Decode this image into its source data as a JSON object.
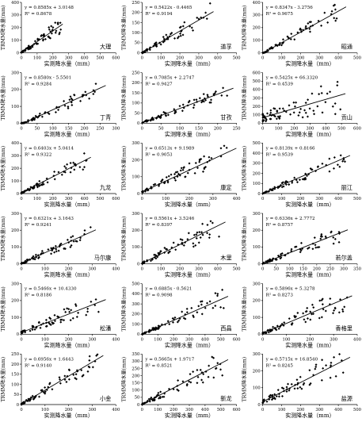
{
  "layout": {
    "rows": 6,
    "cols": 3
  },
  "chart_data": [
    {
      "type": "scatter",
      "station": "大理",
      "equation": "y = 0.8585x + 3.0148",
      "r2": "R² = 0.8678",
      "xlabel": "实测降水量（mm）",
      "ylabel": "TRMM降水量(mm)",
      "xlim": [
        0,
        600
      ],
      "ylim": [
        0,
        400
      ],
      "xticks": [
        "0",
        "100",
        "200",
        "300",
        "400",
        "500",
        "600"
      ],
      "yticks": [
        "0",
        "100",
        "200",
        "300",
        "400"
      ],
      "slope": 0.8585,
      "intercept": 3.0148,
      "xmax": 250,
      "seed": 1
    },
    {
      "type": "scatter",
      "station": "道孚",
      "equation": "y = 0.5422x - 0.4465",
      "r2": "R² = 0.9194",
      "xlabel": "实测降水量（mm）",
      "ylabel": "TRMM降水量(mm)",
      "xlim": [
        0,
        500
      ],
      "ylim": [
        0,
        250
      ],
      "xticks": [
        "0",
        "100",
        "200",
        "300",
        "400",
        "500"
      ],
      "yticks": [
        "0",
        "50",
        "100",
        "150",
        "200",
        "250"
      ],
      "slope": 0.5422,
      "intercept": -0.4465,
      "xmax": 360,
      "seed": 2
    },
    {
      "type": "scatter",
      "station": "昭通",
      "equation": "y = 0.8347x - 3.2756",
      "r2": "R² = 0.9675",
      "xlabel": "实测降水量（mm）",
      "ylabel": "TRMM降水量(mm)",
      "xlim": [
        0,
        500
      ],
      "ylim": [
        0,
        400
      ],
      "xticks": [
        "0",
        "100",
        "200",
        "300",
        "400",
        "500"
      ],
      "yticks": [
        "0",
        "100",
        "200",
        "300",
        "400"
      ],
      "slope": 0.8347,
      "intercept": -3.2756,
      "xmax": 420,
      "seed": 3
    },
    {
      "type": "scatter",
      "station": "丁青",
      "equation": "y = 0.8580x - 5.5501",
      "r2": "R² = 0.9284",
      "xlabel": "实测降水量（mm）",
      "ylabel": "TRMM降水量(mm)",
      "xlim": [
        0,
        300
      ],
      "ylim": [
        0,
        300
      ],
      "xticks": [
        "0",
        "50",
        "100",
        "150",
        "200",
        "250",
        "300"
      ],
      "yticks": [
        "0",
        "100",
        "200",
        "300"
      ],
      "slope": 0.858,
      "intercept": -5.5501,
      "xmax": 255,
      "seed": 4
    },
    {
      "type": "scatter",
      "station": "甘孜",
      "equation": "y = 0.7085x + 2.2747",
      "r2": "R² = 0.9427",
      "xlabel": "实测降水量（mm）",
      "ylabel": "TRMM降水量(mm)",
      "xlim": [
        0,
        250
      ],
      "ylim": [
        0,
        250
      ],
      "xticks": [
        "0",
        "50",
        "100",
        "150",
        "200",
        "250"
      ],
      "yticks": [
        "0",
        "50",
        "100",
        "150",
        "200",
        "250"
      ],
      "slope": 0.7085,
      "intercept": 2.2747,
      "xmax": 230,
      "seed": 5
    },
    {
      "type": "scatter",
      "station": "贡山",
      "equation": "y = 0.5425x + 66.3320",
      "r2": "R² = 0.4539",
      "xlabel": "实测降水量（mm）",
      "ylabel": "TRMM降水量(mm)",
      "xlim": [
        0,
        600
      ],
      "ylim": [
        0,
        600
      ],
      "xticks": [
        "0",
        "100",
        "200",
        "300",
        "400",
        "500",
        "600"
      ],
      "yticks": [
        "0",
        "100",
        "200",
        "300",
        "400",
        "500",
        "600"
      ],
      "slope": 0.5425,
      "intercept": 66.332,
      "xmax": 500,
      "seed": 6
    },
    {
      "type": "scatter",
      "station": "九龙",
      "equation": "y = 0.6403x + 5.0414",
      "r2": "R² = 0.9322",
      "xlabel": "实测降水量（mm）",
      "ylabel": "TRMM降水量(mm)",
      "xlim": [
        0,
        600
      ],
      "ylim": [
        0,
        400
      ],
      "xticks": [
        "0",
        "100",
        "200",
        "300",
        "400",
        "500",
        "600"
      ],
      "yticks": [
        "0",
        "100",
        "200",
        "300",
        "400"
      ],
      "slope": 0.6403,
      "intercept": 5.0414,
      "xmax": 420,
      "seed": 7
    },
    {
      "type": "scatter",
      "station": "康定",
      "equation": "y = 0.6513x + 9.1989",
      "r2": "R² = 0.9053",
      "xlabel": "实测降水量（mm）",
      "ylabel": "TRMM降水量(mm)",
      "xlim": [
        0,
        400
      ],
      "ylim": [
        0,
        300
      ],
      "xticks": [
        "0",
        "100",
        "200",
        "300",
        "400"
      ],
      "yticks": [
        "0",
        "100",
        "200",
        "300"
      ],
      "slope": 0.6513,
      "intercept": 9.1989,
      "xmax": 380,
      "seed": 8
    },
    {
      "type": "scatter",
      "station": "丽江",
      "equation": "y = 0.8139x + 0.8166",
      "r2": "R² = 0.9539",
      "xlabel": "实测降水量（mm）",
      "ylabel": "TRMM降水量(mm)",
      "xlim": [
        0,
        500
      ],
      "ylim": [
        0,
        500
      ],
      "xticks": [
        "0",
        "100",
        "200",
        "300",
        "400",
        "500"
      ],
      "yticks": [
        "0",
        "100",
        "200",
        "300",
        "400",
        "500"
      ],
      "slope": 0.8139,
      "intercept": 0.8166,
      "xmax": 440,
      "seed": 9
    },
    {
      "type": "scatter",
      "station": "马尔康",
      "equation": "y = 0.6321x + 3.1643",
      "r2": "R² = 0.9241",
      "xlabel": "实测降水量（mm）",
      "ylabel": "TRMM降水量(mm)",
      "xlim": [
        0,
        400
      ],
      "ylim": [
        0,
        300
      ],
      "xticks": [
        "0",
        "100",
        "200",
        "300",
        "400"
      ],
      "yticks": [
        "0",
        "100",
        "200",
        "300"
      ],
      "slope": 0.6321,
      "intercept": 3.1643,
      "xmax": 300,
      "seed": 10
    },
    {
      "type": "scatter",
      "station": "木里",
      "equation": "y = 0.5561x + 3.5246",
      "r2": "R² = 0.8397",
      "xlabel": "实测降水量（mm）",
      "ylabel": "TRMM降水量(mm)",
      "xlim": [
        0,
        500
      ],
      "ylim": [
        0,
        300
      ],
      "xticks": [
        "0",
        "100",
        "200",
        "300",
        "400",
        "500"
      ],
      "yticks": [
        "0",
        "100",
        "200",
        "300"
      ],
      "slope": 0.5561,
      "intercept": 3.5246,
      "xmax": 420,
      "seed": 11
    },
    {
      "type": "scatter",
      "station": "若尔盖",
      "equation": "y = 0.6336x + 2.7772",
      "r2": "R² = 0.8757",
      "xlabel": "实测降水量（mm）",
      "ylabel": "TRMM降水量(mm)",
      "xlim": [
        0,
        350
      ],
      "ylim": [
        0,
        300
      ],
      "xticks": [
        "0",
        "50",
        "100",
        "150",
        "200",
        "250",
        "300",
        "350"
      ],
      "yticks": [
        "0",
        "100",
        "200",
        "300"
      ],
      "slope": 0.6336,
      "intercept": 2.7772,
      "xmax": 300,
      "seed": 12
    },
    {
      "type": "scatter",
      "station": "松潘",
      "equation": "y = 0.5466x + 10.4330",
      "r2": "R² = 0.8186",
      "xlabel": "实测降水量（mm）",
      "ylabel": "TRMM降水量(mm)",
      "xlim": [
        0,
        400
      ],
      "ylim": [
        0,
        300
      ],
      "xticks": [
        "0",
        "100",
        "200",
        "300",
        "400"
      ],
      "yticks": [
        "0",
        "100",
        "200",
        "300"
      ],
      "slope": 0.5466,
      "intercept": 10.433,
      "xmax": 340,
      "seed": 13
    },
    {
      "type": "scatter",
      "station": "西昌",
      "equation": "y = 0.6885x - 0.5621",
      "r2": "R² = 0.9098",
      "xlabel": "实测降水量（mm）",
      "ylabel": "TRMM降水量(mm)",
      "xlim": [
        0,
        600
      ],
      "ylim": [
        0,
        500
      ],
      "xticks": [
        "0",
        "100",
        "200",
        "300",
        "400",
        "500",
        "600"
      ],
      "yticks": [
        "0",
        "100",
        "200",
        "300",
        "400",
        "500"
      ],
      "slope": 0.6885,
      "intercept": -0.5621,
      "xmax": 520,
      "seed": 14
    },
    {
      "type": "scatter",
      "station": "香格里",
      "equation": "y = 0.5896x + 5.3278",
      "r2": "R² = 0.8273",
      "xlabel": "实测降水量（mm）",
      "ylabel": "TRMM降水量(mm)",
      "xlim": [
        0,
        400
      ],
      "ylim": [
        0,
        300
      ],
      "xticks": [
        "0",
        "100",
        "200",
        "300",
        "400"
      ],
      "yticks": [
        "0",
        "100",
        "200",
        "300"
      ],
      "slope": 0.5896,
      "intercept": 5.3278,
      "xmax": 360,
      "seed": 15
    },
    {
      "type": "scatter",
      "station": "小金",
      "equation": "y = 0.6956x + 1.6443",
      "r2": "R² = 0.9140",
      "xlabel": "实测降水量（mm）",
      "ylabel": "TRMM降水量(mm)",
      "xlim": [
        0,
        400
      ],
      "ylim": [
        0,
        250
      ],
      "xticks": [
        "0",
        "100",
        "200",
        "300",
        "400"
      ],
      "yticks": [
        "0",
        "50",
        "100",
        "150",
        "200",
        "250"
      ],
      "slope": 0.6956,
      "intercept": 1.6443,
      "xmax": 330,
      "seed": 16
    },
    {
      "type": "scatter",
      "station": "新龙",
      "equation": "y = 0.5665x + 1.9717",
      "r2": "R² = 0.8521",
      "xlabel": "实测降水量（mm）",
      "ylabel": "TRMM降水量(mm)",
      "xlim": [
        0,
        600
      ],
      "ylim": [
        0,
        350
      ],
      "xticks": [
        "0",
        "100",
        "200",
        "300",
        "400",
        "500",
        "600"
      ],
      "yticks": [
        "0",
        "50",
        "100",
        "150",
        "200",
        "250",
        "300",
        "350"
      ],
      "slope": 0.5665,
      "intercept": 1.9717,
      "xmax": 520,
      "seed": 17
    },
    {
      "type": "scatter",
      "station": "盐源",
      "equation": "y = 0.5715x + 16.8540",
      "r2": "R² = 0.8245",
      "xlabel": "实测降水量（mm）",
      "ylabel": "TRMM降水量(mm)",
      "xlim": [
        0,
        500
      ],
      "ylim": [
        0,
        300
      ],
      "xticks": [
        "0",
        "100",
        "200",
        "300",
        "400",
        "500"
      ],
      "yticks": [
        "0",
        "100",
        "200",
        "300"
      ],
      "slope": 0.5715,
      "intercept": 16.854,
      "xmax": 440,
      "seed": 18
    }
  ]
}
